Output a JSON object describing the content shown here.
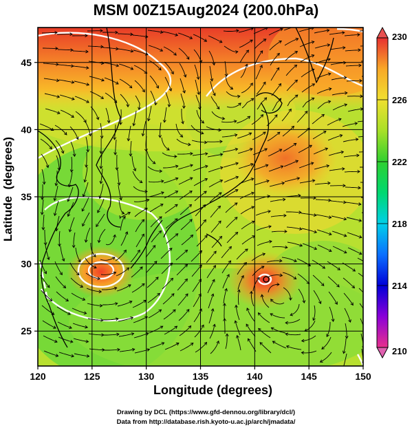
{
  "title": "MSM 00Z15Aug2024 (200.0hPa)",
  "map": {
    "xlabel": "Longitude (degrees)",
    "ylabel": "Latitude  (degrees)",
    "lon_range": [
      120,
      150
    ],
    "lat_range": [
      22.4,
      47.6
    ],
    "lon_ticks": [
      120,
      125,
      130,
      135,
      140,
      145,
      150
    ],
    "lat_ticks": [
      25,
      30,
      35,
      40,
      45
    ],
    "field": "temperature_shading_with_streamlines",
    "warm_centers": [
      {
        "lon": 126,
        "lat": 30.3,
        "value": 228
      },
      {
        "lon": 140.8,
        "lat": 29.6,
        "value": 229
      }
    ]
  },
  "colorbar": {
    "min": 210,
    "max": 230,
    "tick_labels": [
      "230",
      "226",
      "222",
      "218",
      "214",
      "210"
    ],
    "colors": [
      "#e8308c",
      "#8a00d8",
      "#0000d8",
      "#0a70ff",
      "#00d0e8",
      "#00d870",
      "#30d030",
      "#a8e028",
      "#f0e030",
      "#f8a828",
      "#f05028",
      "#e83030"
    ]
  },
  "credits": {
    "line1": "Drawing by DCL (https://www.gfd-dennou.org/library/dcl/)",
    "line2": "Data from http://database.rish.kyoto-u.ac.jp/arch/jmadata/"
  }
}
